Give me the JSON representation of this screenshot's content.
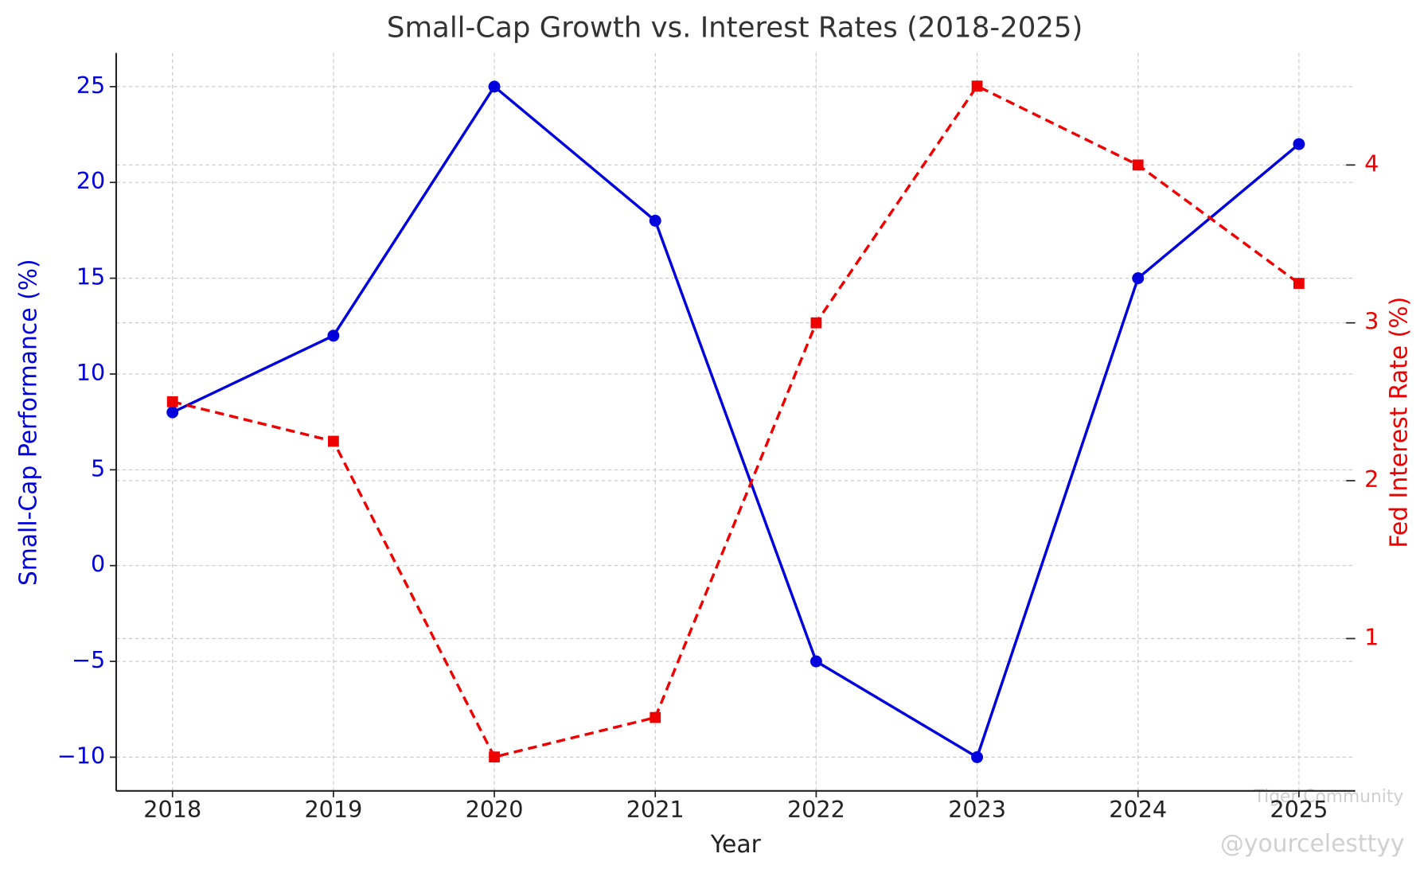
{
  "chart_data": {
    "type": "line",
    "title": "Small-Cap Growth vs. Interest Rates (2018-2025)",
    "x_label": "Year",
    "y_label": "Small-Cap Performance (%)",
    "y2_label": "Fed Interest Rate (%)",
    "x": [
      2018,
      2019,
      2020,
      2021,
      2022,
      2023,
      2024,
      2025
    ],
    "xlim": [
      2017.65,
      2025.35
    ],
    "xticks": [
      2018,
      2019,
      2020,
      2021,
      2022,
      2023,
      2024,
      2025
    ],
    "ylim": [
      -11.76,
      26.76
    ],
    "yticks": [
      {
        "value": -10,
        "label": "−10"
      },
      {
        "value": -5,
        "label": "−5"
      },
      0,
      5,
      10,
      15,
      20,
      25
    ],
    "y2lim": [
      0.035,
      4.71
    ],
    "y2ticks": [
      1,
      2,
      3,
      4
    ],
    "grid": true,
    "series": [
      {
        "name": "Small-Cap Performance (%)",
        "color": "#0000dd",
        "marker": "circle",
        "dash": false,
        "values": [
          8,
          12,
          25,
          18,
          -5,
          -10,
          15,
          22
        ]
      },
      {
        "name": "Fed Interest Rate (%)",
        "color": "#ee0000",
        "marker": "square",
        "dash": true,
        "axis": "y2",
        "values": [
          2.5,
          2.25,
          0.25,
          0.5,
          3.0,
          4.5,
          4.0,
          3.25
        ]
      }
    ],
    "watermark": [
      "Tiger Community",
      "@yourcelesttyy"
    ]
  }
}
